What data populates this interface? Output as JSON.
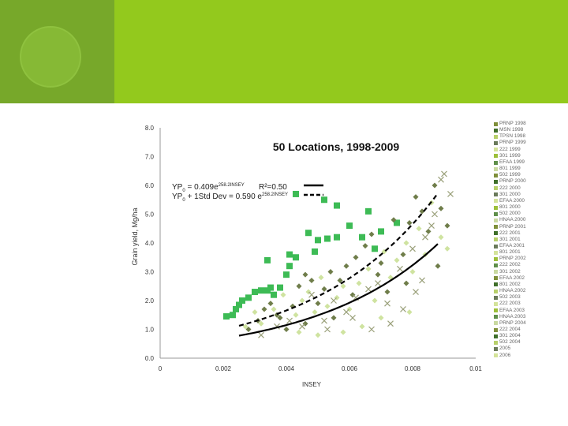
{
  "colors": {
    "band_dark": "#77a82a",
    "band_light": "#93c91d",
    "circle": "#86b935"
  },
  "chart_data": {
    "type": "scatter",
    "title": "50 Locations, 1998-2009",
    "xlabel": "INSEY",
    "ylabel": "Grain yield, Mg/ha",
    "xlim": [
      0,
      0.01
    ],
    "ylim": [
      0,
      8
    ],
    "x_ticks": [
      "0",
      "0.002",
      "0.004",
      "0.006",
      "0.008",
      "0.01"
    ],
    "y_ticks": [
      "0.0",
      "1.0",
      "2.0",
      "3.0",
      "4.0",
      "5.0",
      "6.0",
      "7.0",
      "8.0"
    ],
    "grid": false,
    "legend_position": "right",
    "legend": [
      "PRNP 1998",
      "MSN 1998",
      "TPSN 1998",
      "PRNP 1999",
      "222 1999",
      "301 1999",
      "EFAA 1999",
      "801 1999",
      "502 1999",
      "PRNP 2000",
      "222 2000",
      "301 2000",
      "EFAA 2000",
      "801 2000",
      "502 2000",
      "HNAA 2000",
      "PRNP 2001",
      "222 2001",
      "301 2001",
      "EFAA 2001",
      "801 2001",
      "PRNP 2002",
      "222 2002",
      "301 2002",
      "EFAA 2002",
      "801 2002",
      "HNAA 2002",
      "502 2003",
      "222 2003",
      "EFAA 2003",
      "HNAA 2003",
      "PRNP 2004",
      "222 2004",
      "301 2004",
      "502 2004",
      "2005",
      "2006"
    ],
    "series": [
      {
        "values": [
          [
            0.0021,
            1.45
          ],
          [
            0.0023,
            1.5
          ],
          [
            0.0024,
            1.7
          ],
          [
            0.0025,
            1.85
          ],
          [
            0.0026,
            2.0
          ],
          [
            0.0028,
            2.1
          ],
          [
            0.003,
            2.3
          ],
          [
            0.0032,
            2.35
          ],
          [
            0.0034,
            2.35
          ],
          [
            0.0035,
            2.45
          ],
          [
            0.0036,
            2.2
          ],
          [
            0.0038,
            2.45
          ],
          [
            0.004,
            2.9
          ],
          [
            0.0041,
            3.2
          ],
          [
            0.0043,
            3.5
          ],
          [
            0.0047,
            4.35
          ],
          [
            0.005,
            4.1
          ],
          [
            0.0053,
            4.15
          ],
          [
            0.0056,
            4.2
          ],
          [
            0.006,
            4.6
          ],
          [
            0.0064,
            4.2
          ],
          [
            0.0066,
            5.1
          ],
          [
            0.0068,
            3.8
          ],
          [
            0.007,
            4.4
          ],
          [
            0.0075,
            4.7
          ],
          [
            0.0043,
            5.7
          ],
          [
            0.0052,
            5.5
          ],
          [
            0.0056,
            5.3
          ],
          [
            0.0034,
            3.4
          ],
          [
            0.0041,
            3.6
          ],
          [
            0.0049,
            3.7
          ]
        ]
      },
      {
        "values": [
          [
            0.0028,
            1.0
          ],
          [
            0.0031,
            1.3
          ],
          [
            0.0033,
            1.7
          ],
          [
            0.0035,
            1.9
          ],
          [
            0.0037,
            1.5
          ],
          [
            0.0038,
            1.4
          ],
          [
            0.0042,
            1.8
          ],
          [
            0.0044,
            2.5
          ],
          [
            0.0046,
            2.9
          ],
          [
            0.0048,
            2.7
          ],
          [
            0.005,
            1.9
          ],
          [
            0.0052,
            2.4
          ],
          [
            0.0054,
            3.0
          ],
          [
            0.0057,
            2.7
          ],
          [
            0.0059,
            3.2
          ],
          [
            0.0062,
            3.5
          ],
          [
            0.0065,
            3.9
          ],
          [
            0.0067,
            4.3
          ],
          [
            0.007,
            3.3
          ],
          [
            0.0072,
            2.3
          ],
          [
            0.0074,
            4.8
          ],
          [
            0.0077,
            3.6
          ],
          [
            0.0079,
            4.7
          ],
          [
            0.0081,
            5.6
          ],
          [
            0.0083,
            5.1
          ],
          [
            0.0085,
            4.4
          ],
          [
            0.0087,
            6.0
          ],
          [
            0.0089,
            5.2
          ],
          [
            0.0091,
            4.6
          ],
          [
            0.0088,
            3.2
          ],
          [
            0.0078,
            2.6
          ],
          [
            0.0069,
            2.9
          ],
          [
            0.0061,
            2.2
          ],
          [
            0.0055,
            1.4
          ],
          [
            0.0046,
            1.2
          ],
          [
            0.004,
            1.0
          ]
        ]
      },
      {
        "values": [
          [
            0.0027,
            1.1
          ],
          [
            0.003,
            1.6
          ],
          [
            0.0032,
            1.2
          ],
          [
            0.0036,
            1.7
          ],
          [
            0.0039,
            2.2
          ],
          [
            0.0043,
            1.5
          ],
          [
            0.0045,
            2.0
          ],
          [
            0.0047,
            2.3
          ],
          [
            0.0049,
            1.6
          ],
          [
            0.0051,
            2.8
          ],
          [
            0.0053,
            1.8
          ],
          [
            0.0056,
            2.1
          ],
          [
            0.0058,
            2.5
          ],
          [
            0.006,
            1.7
          ],
          [
            0.0063,
            2.6
          ],
          [
            0.0066,
            3.1
          ],
          [
            0.0068,
            2.0
          ],
          [
            0.0071,
            3.7
          ],
          [
            0.0073,
            2.8
          ],
          [
            0.0075,
            3.4
          ],
          [
            0.0078,
            4.0
          ],
          [
            0.008,
            3.0
          ],
          [
            0.0082,
            4.5
          ],
          [
            0.0084,
            3.6
          ],
          [
            0.0086,
            5.4
          ],
          [
            0.0089,
            4.2
          ],
          [
            0.0091,
            3.8
          ],
          [
            0.0079,
            1.6
          ],
          [
            0.007,
            1.4
          ],
          [
            0.0064,
            1.1
          ],
          [
            0.0058,
            0.9
          ],
          [
            0.005,
            0.8
          ],
          [
            0.0044,
            0.9
          ]
        ]
      },
      {
        "values": [
          [
            0.0032,
            0.8
          ],
          [
            0.0037,
            1.1
          ],
          [
            0.0041,
            1.3
          ],
          [
            0.0045,
            1.1
          ],
          [
            0.0048,
            2.2
          ],
          [
            0.0052,
            1.3
          ],
          [
            0.0055,
            2.0
          ],
          [
            0.0059,
            1.6
          ],
          [
            0.0062,
            2.1
          ],
          [
            0.0066,
            2.4
          ],
          [
            0.0069,
            2.6
          ],
          [
            0.0072,
            1.9
          ],
          [
            0.0076,
            3.1
          ],
          [
            0.008,
            3.8
          ],
          [
            0.0083,
            2.7
          ],
          [
            0.0086,
            4.6
          ],
          [
            0.009,
            6.4
          ],
          [
            0.0092,
            5.7
          ],
          [
            0.0089,
            6.2
          ],
          [
            0.0087,
            5.0
          ],
          [
            0.0084,
            4.2
          ],
          [
            0.0081,
            2.3
          ],
          [
            0.0077,
            1.7
          ],
          [
            0.0073,
            1.2
          ],
          [
            0.0067,
            1.0
          ],
          [
            0.0061,
            1.4
          ],
          [
            0.0053,
            1.0
          ]
        ]
      }
    ],
    "fits": [
      {
        "name": "YP0 = 0.409e^258.2 INSEY",
        "a": 0.409,
        "b": 258.2,
        "r2": "R²=0.50",
        "style": "solid"
      },
      {
        "name": "YP0 + 1Std Dev = 0.590 e^258.2 INSEY",
        "a": 0.59,
        "b": 258.2,
        "style": "dashed"
      }
    ],
    "annotations": {
      "line1_prefix": "YP",
      "line1_sub": "0",
      "line1_eq": " = 0.409e",
      "line1_exp": "258.2INSEY",
      "r2": "R²=0.50",
      "line2_prefix": "YP",
      "line2_sub": "0",
      "line2_eq": " + 1Std Dev = 0.590 e",
      "line2_exp": "258.2INSEY"
    }
  }
}
